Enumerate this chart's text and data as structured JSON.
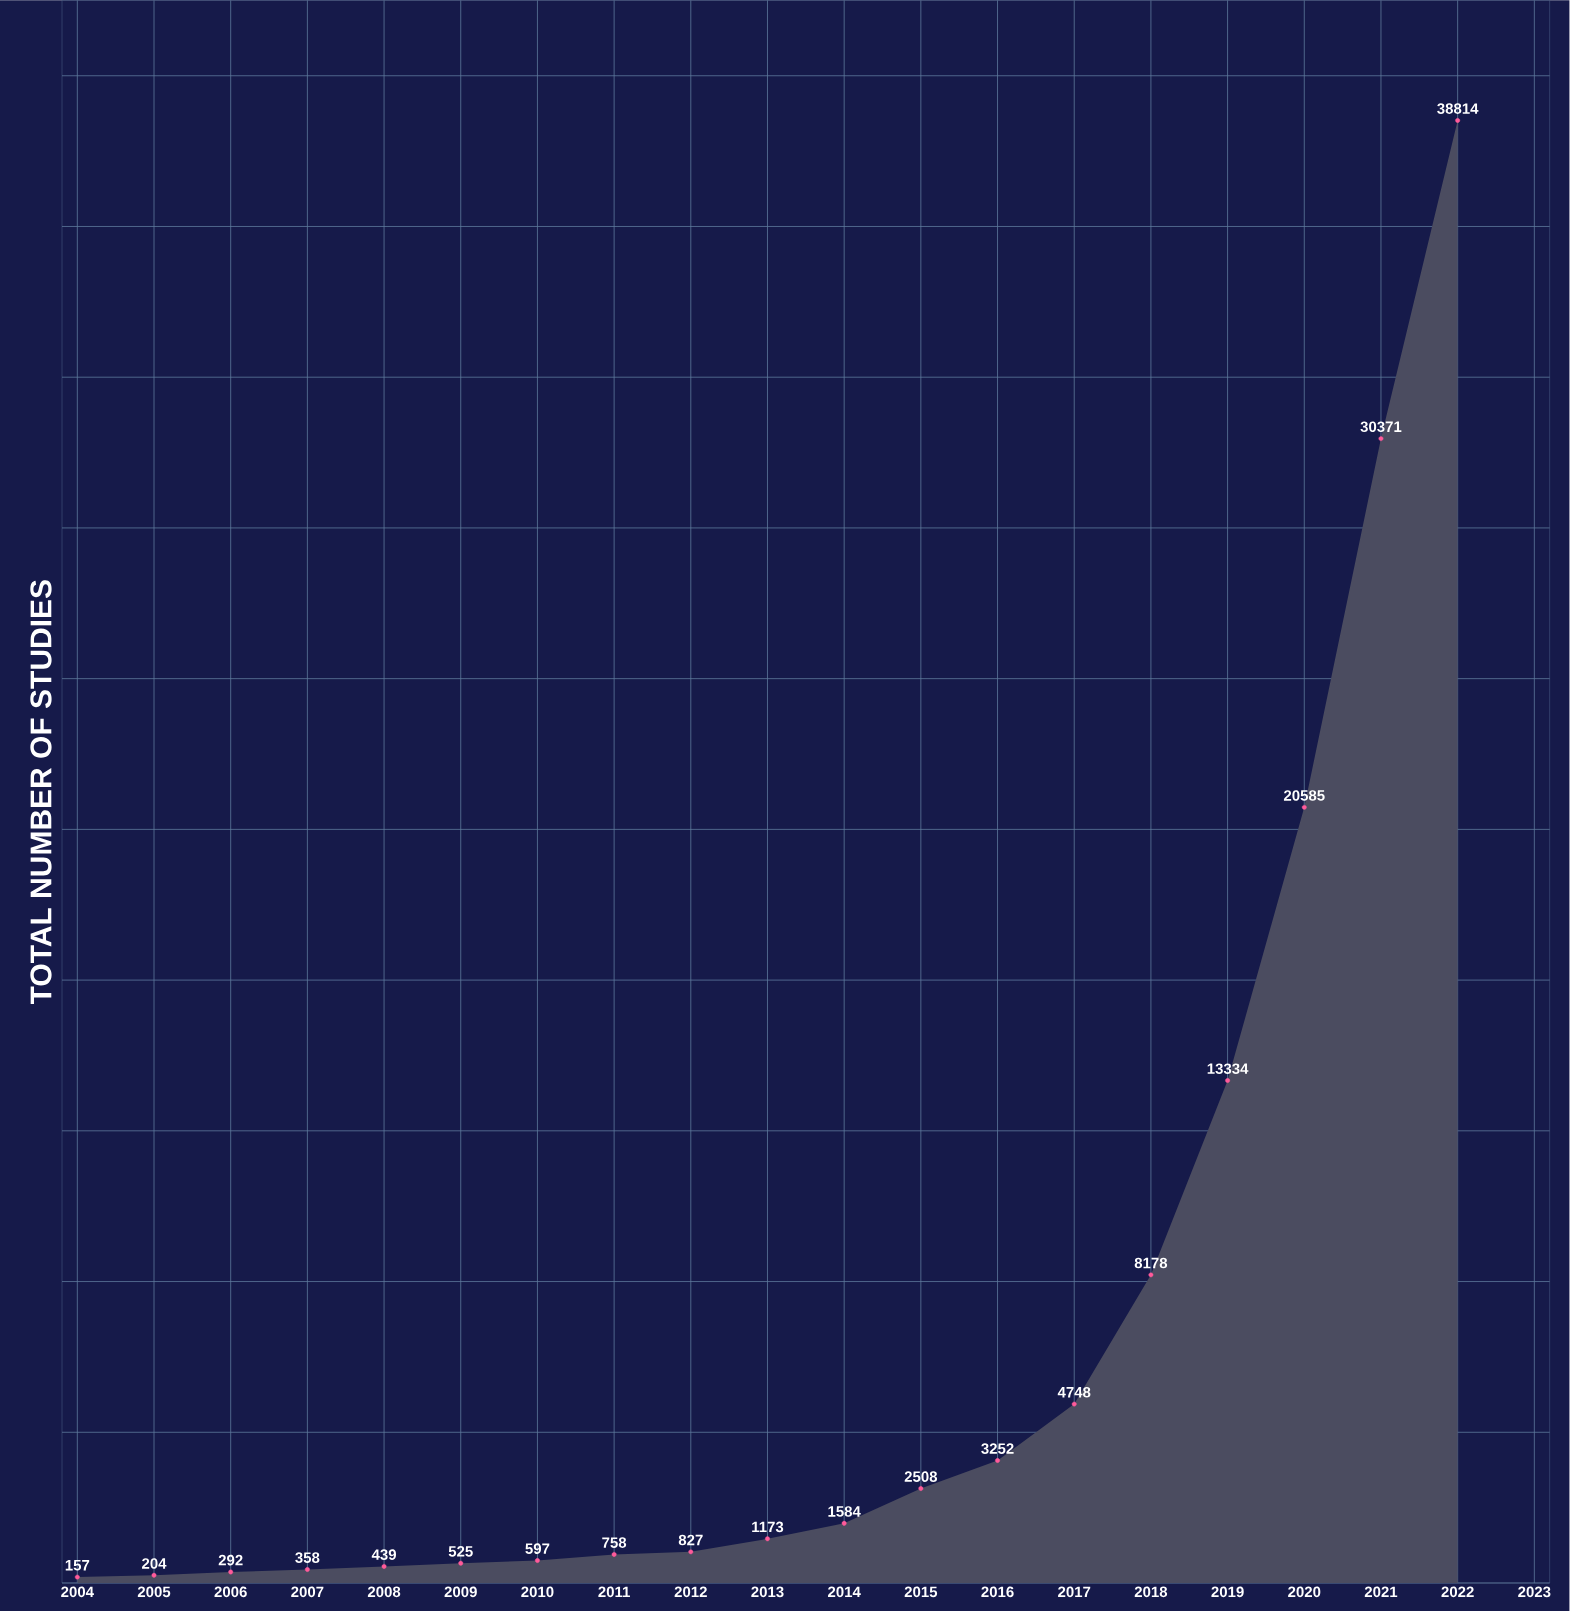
{
  "chart_data": {
    "type": "area",
    "ylabel": "TOTAL NUMBER OF STUDIES",
    "x": [
      2004,
      2005,
      2006,
      2007,
      2008,
      2009,
      2010,
      2011,
      2012,
      2013,
      2014,
      2015,
      2016,
      2017,
      2018,
      2019,
      2020,
      2021,
      2022
    ],
    "series": [
      {
        "color": "#4b4c60",
        "values": [
          157,
          204,
          292,
          358,
          439,
          525,
          597,
          758,
          827,
          1173,
          1584,
          2508,
          3252,
          4748,
          8178,
          13334,
          20585,
          30371,
          38814
        ]
      }
    ],
    "data_labels": true,
    "marker": "circle",
    "xlim": [
      2003.8,
      2023.2
    ],
    "xticks": [
      2004,
      2005,
      2006,
      2007,
      2008,
      2009,
      2010,
      2011,
      2012,
      2013,
      2014,
      2015,
      2016,
      2017,
      2018,
      2019,
      2020,
      2021,
      2022,
      2023
    ],
    "ylim": [
      0,
      42000
    ],
    "yticks": [
      {
        "value": 0,
        "label": null
      },
      {
        "value": 4000,
        "label": null
      },
      {
        "value": 8000,
        "label": null
      },
      {
        "value": 12000,
        "label": null
      },
      {
        "value": 16000,
        "label": null
      },
      {
        "value": 20000,
        "label": null
      },
      {
        "value": 24000,
        "label": null
      },
      {
        "value": 28000,
        "label": null
      },
      {
        "value": 32000,
        "label": null
      },
      {
        "value": 36000,
        "label": null
      },
      {
        "value": 40000,
        "label": null
      }
    ],
    "grid": true,
    "tick_labels": "x"
  }
}
